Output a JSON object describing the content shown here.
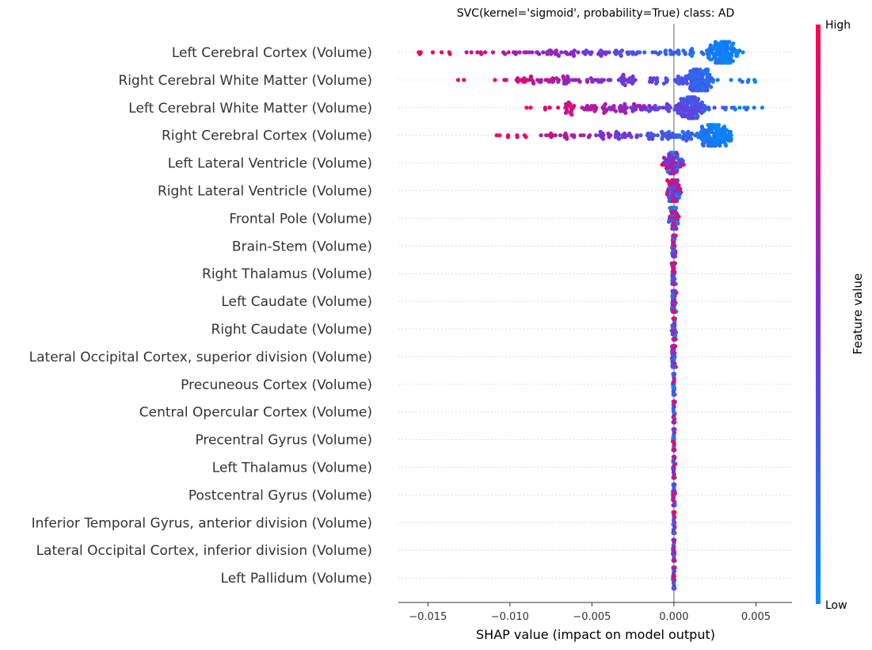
{
  "chart_data": {
    "type": "scatter",
    "subtype": "shap-beeswarm",
    "title": "SVC(kernel='sigmoid', probability=True) class: AD",
    "xlabel": "SHAP value (impact on model output)",
    "xlim": [
      -0.0168,
      0.0072
    ],
    "x_ticks": [
      -0.015,
      -0.01,
      -0.005,
      0.0,
      0.005
    ],
    "x_tick_labels": [
      "−0.015",
      "−0.010",
      "−0.005",
      "0.000",
      "0.005"
    ],
    "grid": "dotted horizontal row guides",
    "colorbar": {
      "label": "Feature value",
      "high_label": "High",
      "low_label": "Low",
      "high_color": "#ff0051",
      "mid_color": "#7a2fd6",
      "low_color": "#008bfb"
    },
    "features": [
      {
        "name": "Left Cerebral Cortex  (Volume)",
        "min": -0.0158,
        "max": 0.0042,
        "dense_center": 0.003,
        "spread": 0.009
      },
      {
        "name": "Right Cerebral White Matter (Volume)",
        "min": -0.0135,
        "max": 0.006,
        "dense_center": 0.0015,
        "spread": 0.012
      },
      {
        "name": "Left Cerebral White Matter (Volume)",
        "min": -0.0092,
        "max": 0.0058,
        "dense_center": 0.001,
        "spread": 0.011
      },
      {
        "name": "Right Cerebral Cortex (Volume)",
        "min": -0.011,
        "max": 0.0035,
        "dense_center": 0.0025,
        "spread": 0.008
      },
      {
        "name": "Left Lateral Ventricle (Volume)",
        "min": -0.0012,
        "max": 0.0006,
        "dense_center": 0.0,
        "spread": 0.0012
      },
      {
        "name": "Right Lateral Ventricle (Volume)",
        "min": -0.001,
        "max": 0.0006,
        "dense_center": 0.0,
        "spread": 0.001
      },
      {
        "name": "Frontal Pole (Volume)",
        "min": -0.0006,
        "max": 0.0004,
        "dense_center": 0.0,
        "spread": 0.0006
      },
      {
        "name": "Brain-Stem (Volume)",
        "min": -0.0002,
        "max": 0.0002,
        "dense_center": 0.0,
        "spread": 0.0002
      },
      {
        "name": "Right Thalamus (Volume)",
        "min": -0.0002,
        "max": 0.0002,
        "dense_center": 0.0,
        "spread": 0.0002
      },
      {
        "name": "Left Caudate (Volume)",
        "min": -0.0002,
        "max": 0.0002,
        "dense_center": 0.0,
        "spread": 0.0002
      },
      {
        "name": "Right Caudate (Volume)",
        "min": -0.0002,
        "max": 0.0002,
        "dense_center": 0.0,
        "spread": 0.0002
      },
      {
        "name": "Lateral Occipital Cortex, superior division (Volume)",
        "min": -0.0002,
        "max": 0.0002,
        "dense_center": 0.0,
        "spread": 0.0002
      },
      {
        "name": "Precuneous Cortex (Volume)",
        "min": -0.0001,
        "max": 0.0001,
        "dense_center": 0.0,
        "spread": 0.0001
      },
      {
        "name": "Central Opercular Cortex (Volume)",
        "min": -0.0001,
        "max": 0.0001,
        "dense_center": 0.0,
        "spread": 0.0001
      },
      {
        "name": "Precentral Gyrus (Volume)",
        "min": -0.0001,
        "max": 0.0001,
        "dense_center": 0.0,
        "spread": 0.0001
      },
      {
        "name": "Left Thalamus (Volume)",
        "min": -0.0001,
        "max": 0.0001,
        "dense_center": 0.0,
        "spread": 0.0001
      },
      {
        "name": "Postcentral Gyrus (Volume)",
        "min": -0.0001,
        "max": 0.0001,
        "dense_center": 0.0,
        "spread": 0.0001
      },
      {
        "name": "Inferior Temporal Gyrus, anterior division (Volume)",
        "min": -0.0001,
        "max": 0.0001,
        "dense_center": 0.0,
        "spread": 0.0001
      },
      {
        "name": "Lateral Occipital Cortex, inferior division (Volume)",
        "min": -0.0001,
        "max": 0.0001,
        "dense_center": 0.0,
        "spread": 0.0001
      },
      {
        "name": "Left Pallidum (Volume)",
        "min": -0.0001,
        "max": 0.0001,
        "dense_center": 0.0,
        "spread": 0.0001
      }
    ]
  }
}
